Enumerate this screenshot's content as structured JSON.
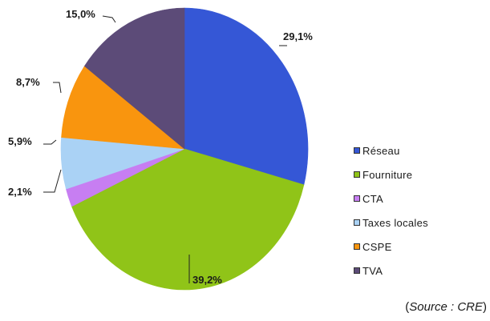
{
  "chart_data": {
    "type": "pie",
    "start_angle_deg": 0,
    "direction": "clockwise",
    "slices": [
      {
        "name": "Réseau",
        "value": 29.1,
        "label": "29,1%",
        "color": "#3557d6"
      },
      {
        "name": "Fourniture",
        "value": 39.2,
        "label": "39,2%",
        "color": "#90c418"
      },
      {
        "name": "CTA",
        "value": 2.1,
        "label": "2,1%",
        "color": "#c77ef2"
      },
      {
        "name": "Taxes locales",
        "value": 5.9,
        "label": "5,9%",
        "color": "#aad2f5"
      },
      {
        "name": "CSPE",
        "value": 8.7,
        "label": "8,7%",
        "color": "#f9950e"
      },
      {
        "name": "TVA",
        "value": 15.0,
        "label": "15,0%",
        "color": "#5c4b78"
      }
    ],
    "legend": {
      "position": "right"
    }
  },
  "source": {
    "prefix": "(",
    "name": "Source : CRE",
    "suffix": ")"
  }
}
